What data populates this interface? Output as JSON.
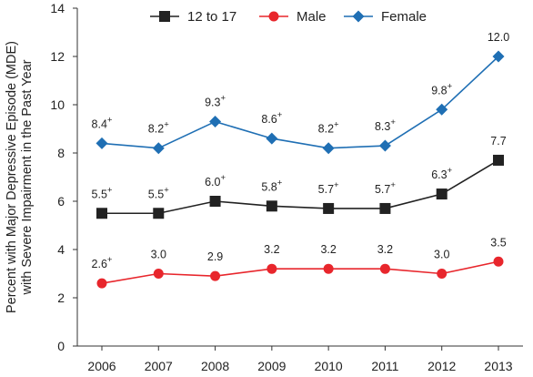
{
  "chart_data": {
    "type": "line",
    "x": [
      2006,
      2007,
      2008,
      2009,
      2010,
      2011,
      2012,
      2013
    ],
    "ylabel_lines": [
      "Percent with Major Depressive Episode (MDE)",
      "with Severe Impairment in the Past Year"
    ],
    "ylim": [
      0,
      14
    ],
    "yticks": [
      0,
      2,
      4,
      6,
      8,
      10,
      12,
      14
    ],
    "grid": false,
    "legend_position": "top",
    "series": [
      {
        "name": "12 to 17",
        "color": "#222222",
        "marker": "square",
        "values": [
          5.5,
          5.5,
          6.0,
          5.8,
          5.7,
          5.7,
          6.3,
          7.7
        ],
        "labels": [
          "5.5",
          "5.5",
          "6.0",
          "5.8",
          "5.7",
          "5.7",
          "6.3",
          "7.7"
        ],
        "label_sup": [
          "+",
          "+",
          "+",
          "+",
          "+",
          "+",
          "+",
          ""
        ]
      },
      {
        "name": "Male",
        "color": "#e8262c",
        "marker": "circle",
        "values": [
          2.6,
          3.0,
          2.9,
          3.2,
          3.2,
          3.2,
          3.0,
          3.5
        ],
        "labels": [
          "2.6",
          "3.0",
          "2.9",
          "3.2",
          "3.2",
          "3.2",
          "3.0",
          "3.5"
        ],
        "label_sup": [
          "+",
          "",
          "",
          "",
          "",
          "",
          "",
          ""
        ]
      },
      {
        "name": "Female",
        "color": "#1f6fb4",
        "marker": "diamond",
        "values": [
          8.4,
          8.2,
          9.3,
          8.6,
          8.2,
          8.3,
          9.8,
          12.0
        ],
        "labels": [
          "8.4",
          "8.2",
          "9.3",
          "8.6",
          "8.2",
          "8.3",
          "9.8",
          "12.0"
        ],
        "label_sup": [
          "+",
          "+",
          "+",
          "+",
          "+",
          "+",
          "+",
          ""
        ]
      }
    ]
  }
}
